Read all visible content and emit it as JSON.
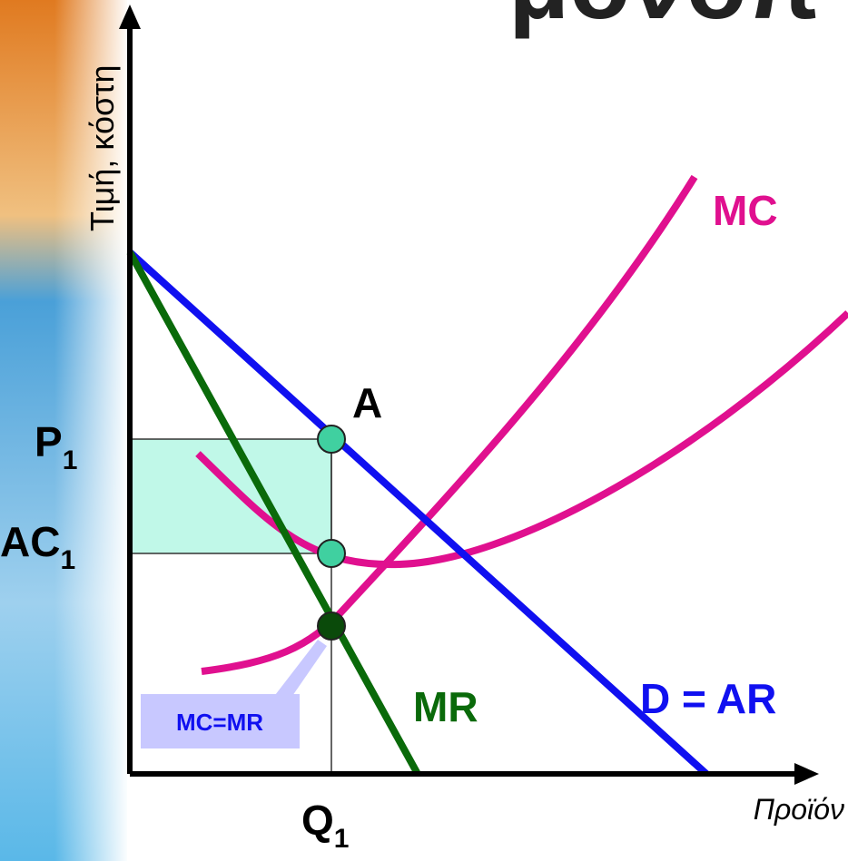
{
  "diagram": {
    "title_fragment": "μονοπ",
    "y_axis_label": "Τιμή, κόστη",
    "x_axis_label": "Προϊόν",
    "curves": {
      "mc": "MC",
      "demand": "D = AR",
      "mr": "MR"
    },
    "point_label": "A",
    "price_label": {
      "main": "P",
      "sub": "1"
    },
    "cost_label": {
      "main": "AC",
      "sub": "1"
    },
    "quantity_label": {
      "main": "Q",
      "sub": "1"
    },
    "callout": "MC=MR"
  }
}
